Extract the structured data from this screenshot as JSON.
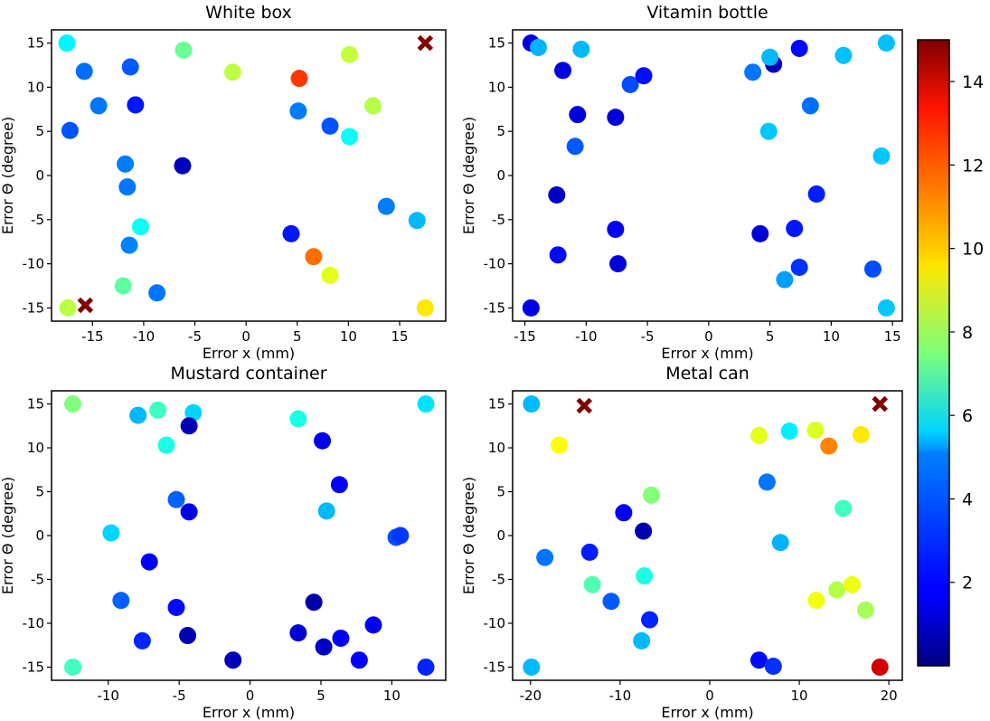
{
  "chart_data": [
    {
      "type": "scatter",
      "title": "White box",
      "xlabel": "Error x (mm)",
      "ylabel": "Error Θ (degree)",
      "xlim": [
        -19,
        19.5
      ],
      "ylim": [
        -16.5,
        16.5
      ],
      "xticks": [
        -15,
        -10,
        -5,
        0,
        5,
        10,
        15
      ],
      "yticks": [
        -15,
        -10,
        -5,
        0,
        5,
        10,
        15
      ],
      "points": [
        {
          "x": -17.5,
          "y": 15,
          "v": 5.5
        },
        {
          "x": -15.8,
          "y": 11.8,
          "v": 3.5
        },
        {
          "x": -14.4,
          "y": 7.9,
          "v": 3.6
        },
        {
          "x": -17.2,
          "y": 5.1,
          "v": 3.1
        },
        {
          "x": -11.3,
          "y": 12.3,
          "v": 3.2
        },
        {
          "x": -10.8,
          "y": 8.0,
          "v": 2.2
        },
        {
          "x": -11.8,
          "y": 1.3,
          "v": 3.7
        },
        {
          "x": -11.6,
          "y": -1.3,
          "v": 3.6
        },
        {
          "x": -6.1,
          "y": 14.2,
          "v": 7.2
        },
        {
          "x": -6.2,
          "y": 1.1,
          "v": 0.9
        },
        {
          "x": -1.3,
          "y": 11.7,
          "v": 8.4
        },
        {
          "x": 5.2,
          "y": 11.0,
          "v": 12.3
        },
        {
          "x": 5.1,
          "y": 7.3,
          "v": 3.7
        },
        {
          "x": 8.2,
          "y": 5.6,
          "v": 3.1
        },
        {
          "x": 10.1,
          "y": 13.7,
          "v": 8.5
        },
        {
          "x": 10.1,
          "y": 4.4,
          "v": 5.7
        },
        {
          "x": 12.4,
          "y": 7.9,
          "v": 8.3
        },
        {
          "x": 13.7,
          "y": -3.5,
          "v": 3.7
        },
        {
          "x": 16.7,
          "y": -5.1,
          "v": 4.6
        },
        {
          "x": 4.4,
          "y": -6.6,
          "v": 2.2
        },
        {
          "x": 6.6,
          "y": -9.2,
          "v": 11.5
        },
        {
          "x": 8.2,
          "y": -11.3,
          "v": 9.0
        },
        {
          "x": -10.3,
          "y": -5.8,
          "v": 5.8
        },
        {
          "x": -11.4,
          "y": -7.9,
          "v": 3.8
        },
        {
          "x": -12.0,
          "y": -12.5,
          "v": 7.0
        },
        {
          "x": -8.7,
          "y": -13.3,
          "v": 3.6
        },
        {
          "x": -17.4,
          "y": -15,
          "v": 8.4
        },
        {
          "x": 17.5,
          "y": -15,
          "v": 9.7
        }
      ],
      "markers_x": [
        {
          "x": 17.5,
          "y": 15
        },
        {
          "x": -15.7,
          "y": -14.7
        }
      ]
    },
    {
      "type": "scatter",
      "title": "Vitamin bottle",
      "xlabel": "Error x (mm)",
      "ylabel": "Error Θ (degree)",
      "xlim": [
        -16,
        15.8
      ],
      "ylim": [
        -16.5,
        16.5
      ],
      "xticks": [
        -15,
        -10,
        -5,
        0,
        5,
        10,
        15
      ],
      "yticks": [
        -15,
        -10,
        -5,
        0,
        5,
        10,
        15
      ],
      "points": [
        {
          "x": -14.5,
          "y": 15,
          "v": 1.3
        },
        {
          "x": -13.9,
          "y": 14.5,
          "v": 4.5
        },
        {
          "x": -10.4,
          "y": 14.3,
          "v": 4.6
        },
        {
          "x": -11.9,
          "y": 11.9,
          "v": 1.5
        },
        {
          "x": -6.4,
          "y": 10.3,
          "v": 3.0
        },
        {
          "x": -5.3,
          "y": 11.3,
          "v": 2.1
        },
        {
          "x": -10.7,
          "y": 6.9,
          "v": 1.3
        },
        {
          "x": -7.6,
          "y": 6.6,
          "v": 1.3
        },
        {
          "x": -10.9,
          "y": 3.3,
          "v": 3.2
        },
        {
          "x": 5.3,
          "y": 12.6,
          "v": 0.8
        },
        {
          "x": 5.0,
          "y": 13.4,
          "v": 4.6
        },
        {
          "x": 3.6,
          "y": 11.7,
          "v": 3.6
        },
        {
          "x": 7.4,
          "y": 14.4,
          "v": 2.0
        },
        {
          "x": 11.0,
          "y": 13.6,
          "v": 4.7
        },
        {
          "x": 14.5,
          "y": 15,
          "v": 4.7
        },
        {
          "x": 8.3,
          "y": 7.9,
          "v": 3.5
        },
        {
          "x": 4.9,
          "y": 5.0,
          "v": 4.8
        },
        {
          "x": 14.1,
          "y": 2.2,
          "v": 4.8
        },
        {
          "x": -12.4,
          "y": -2.2,
          "v": 1.0
        },
        {
          "x": 8.8,
          "y": -2.1,
          "v": 2.3
        },
        {
          "x": -7.6,
          "y": -6.1,
          "v": 1.6
        },
        {
          "x": 4.2,
          "y": -6.6,
          "v": 1.3
        },
        {
          "x": 7.0,
          "y": -6.0,
          "v": 2.2
        },
        {
          "x": -12.3,
          "y": -9.0,
          "v": 2.0
        },
        {
          "x": -7.4,
          "y": -10.0,
          "v": 1.3
        },
        {
          "x": 7.4,
          "y": -10.4,
          "v": 2.6
        },
        {
          "x": 6.2,
          "y": -11.8,
          "v": 4.2
        },
        {
          "x": 13.4,
          "y": -10.6,
          "v": 3.0
        },
        {
          "x": -14.5,
          "y": -15,
          "v": 1.5
        },
        {
          "x": 14.5,
          "y": -15,
          "v": 4.8
        }
      ],
      "markers_x": []
    },
    {
      "type": "scatter",
      "title": "Mustard container",
      "xlabel": "Error x (mm)",
      "ylabel": "Error Θ (degree)",
      "xlim": [
        -14,
        13.8
      ],
      "ylim": [
        -16.5,
        16.5
      ],
      "xticks": [
        -10,
        -5,
        0,
        5,
        10
      ],
      "yticks": [
        -15,
        -10,
        -5,
        0,
        5,
        10,
        15
      ],
      "points": [
        {
          "x": -12.5,
          "y": 15,
          "v": 7.5
        },
        {
          "x": -7.9,
          "y": 13.7,
          "v": 4.6
        },
        {
          "x": -6.5,
          "y": 14.3,
          "v": 6.5
        },
        {
          "x": -4.0,
          "y": 14.0,
          "v": 5.0
        },
        {
          "x": -5.9,
          "y": 10.3,
          "v": 6.0
        },
        {
          "x": -4.3,
          "y": 12.5,
          "v": 0.8
        },
        {
          "x": -5.2,
          "y": 4.1,
          "v": 3.3
        },
        {
          "x": -4.3,
          "y": 2.7,
          "v": 1.5
        },
        {
          "x": -9.8,
          "y": 0.3,
          "v": 5.0
        },
        {
          "x": 3.4,
          "y": 13.3,
          "v": 6.0
        },
        {
          "x": 5.1,
          "y": 10.8,
          "v": 1.6
        },
        {
          "x": 12.4,
          "y": 15,
          "v": 5.2
        },
        {
          "x": 6.3,
          "y": 5.8,
          "v": 1.8
        },
        {
          "x": 5.4,
          "y": 2.8,
          "v": 4.6
        },
        {
          "x": 10.3,
          "y": -0.2,
          "v": 3.0
        },
        {
          "x": 10.6,
          "y": 0.0,
          "v": 2.7
        },
        {
          "x": -7.1,
          "y": -3.0,
          "v": 1.8
        },
        {
          "x": -9.1,
          "y": -7.4,
          "v": 3.3
        },
        {
          "x": -5.2,
          "y": -8.2,
          "v": 2.0
        },
        {
          "x": -7.6,
          "y": -12.0,
          "v": 2.4
        },
        {
          "x": -4.4,
          "y": -11.4,
          "v": 0.7
        },
        {
          "x": -1.2,
          "y": -14.2,
          "v": 0.8
        },
        {
          "x": 4.5,
          "y": -7.6,
          "v": 0.6
        },
        {
          "x": 3.4,
          "y": -11.1,
          "v": 1.2
        },
        {
          "x": 5.2,
          "y": -12.7,
          "v": 1.0
        },
        {
          "x": 6.4,
          "y": -11.7,
          "v": 1.8
        },
        {
          "x": 8.7,
          "y": -10.2,
          "v": 1.7
        },
        {
          "x": 7.7,
          "y": -14.2,
          "v": 1.9
        },
        {
          "x": -12.5,
          "y": -15,
          "v": 6.6
        },
        {
          "x": 12.4,
          "y": -15,
          "v": 2.4
        }
      ],
      "markers_x": []
    },
    {
      "type": "scatter",
      "title": "Metal can",
      "xlabel": "Error x (mm)",
      "ylabel": "Error Θ (degree)",
      "xlim": [
        -22,
        21.5
      ],
      "ylim": [
        -16.5,
        16.5
      ],
      "xticks": [
        -20,
        -10,
        0,
        10,
        20
      ],
      "yticks": [
        -15,
        -10,
        -5,
        0,
        5,
        10,
        15
      ],
      "points": [
        {
          "x": -19.9,
          "y": 15,
          "v": 4.6
        },
        {
          "x": -16.8,
          "y": 10.3,
          "v": 9.4
        },
        {
          "x": -6.5,
          "y": 4.6,
          "v": 7.6
        },
        {
          "x": -9.6,
          "y": 2.6,
          "v": 1.8
        },
        {
          "x": -7.4,
          "y": 0.5,
          "v": 0.7
        },
        {
          "x": -18.4,
          "y": -2.5,
          "v": 3.6
        },
        {
          "x": -13.4,
          "y": -1.9,
          "v": 2.3
        },
        {
          "x": -13.1,
          "y": -5.6,
          "v": 6.8
        },
        {
          "x": -7.3,
          "y": -4.6,
          "v": 6.0
        },
        {
          "x": -11.0,
          "y": -7.5,
          "v": 3.2
        },
        {
          "x": -6.7,
          "y": -9.6,
          "v": 2.4
        },
        {
          "x": -7.6,
          "y": -12.0,
          "v": 4.6
        },
        {
          "x": -19.9,
          "y": -15,
          "v": 4.6
        },
        {
          "x": 5.5,
          "y": 11.4,
          "v": 9.0
        },
        {
          "x": 8.9,
          "y": 11.9,
          "v": 5.4
        },
        {
          "x": 11.8,
          "y": 12.0,
          "v": 8.9
        },
        {
          "x": 13.3,
          "y": 10.2,
          "v": 11.2
        },
        {
          "x": 16.9,
          "y": 11.5,
          "v": 9.7
        },
        {
          "x": 6.4,
          "y": 6.1,
          "v": 3.6
        },
        {
          "x": 14.9,
          "y": 3.1,
          "v": 6.6
        },
        {
          "x": 7.9,
          "y": -0.8,
          "v": 4.5
        },
        {
          "x": 11.9,
          "y": -7.4,
          "v": 9.2
        },
        {
          "x": 14.2,
          "y": -6.2,
          "v": 8.3
        },
        {
          "x": 15.9,
          "y": -5.6,
          "v": 9.1
        },
        {
          "x": 17.4,
          "y": -8.5,
          "v": 8.1
        },
        {
          "x": 5.5,
          "y": -14.2,
          "v": 2.0
        },
        {
          "x": 7.1,
          "y": -14.9,
          "v": 2.6
        },
        {
          "x": 19.0,
          "y": -15,
          "v": 13.8
        }
      ],
      "markers_x": [
        {
          "x": -14.0,
          "y": 14.8
        },
        {
          "x": 19.0,
          "y": 15.0
        }
      ]
    }
  ],
  "colorbar": {
    "min": 0,
    "max": 15,
    "ticks": [
      2,
      4,
      6,
      8,
      10,
      12,
      14
    ]
  },
  "marker_color": "#800000"
}
